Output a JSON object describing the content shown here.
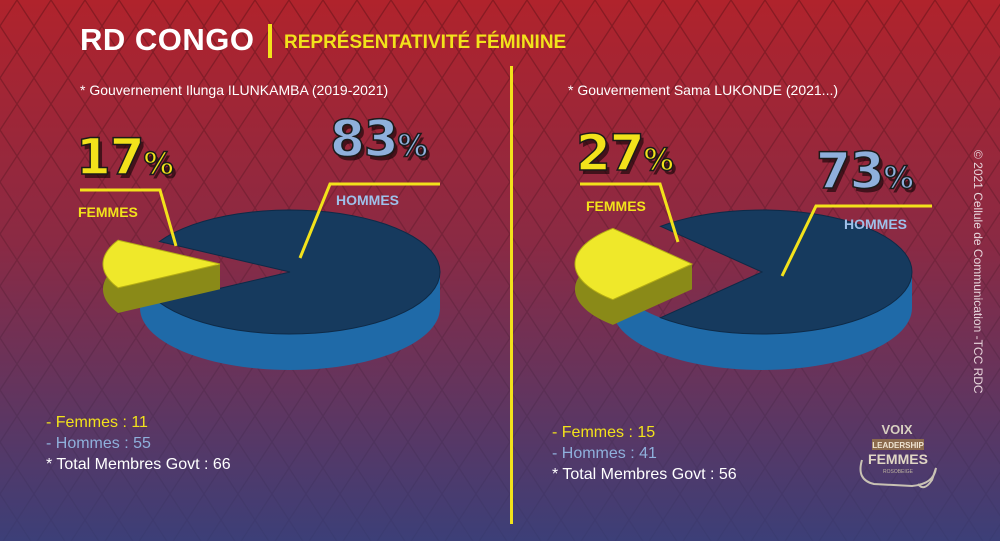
{
  "header": {
    "title": "RD CONGO",
    "subtitle": "REPRÉSENTATIVITÉ FÉMININE"
  },
  "credit": "© 2021 Cellule de Communication -TCC RDC",
  "logo": {
    "line1": "VOIX",
    "line2": "LEADERSHIP",
    "line3": "FEMMES",
    "line4": "ROSOBEIGE"
  },
  "colors": {
    "women": "#f2e21b",
    "men": "#8fb0dc",
    "pie_top": "#163a5e",
    "pie_side": "#1f6aa8",
    "slice_side": "#8a8a18",
    "slice_top": "#efe82a"
  },
  "chart_data": [
    {
      "type": "pie",
      "title": "* Gouvernement Ilunga ILUNKAMBA (2019-2021)",
      "slices": [
        {
          "label": "FEMMES",
          "value": 17,
          "display": "17",
          "unit": "%"
        },
        {
          "label": "HOMMES",
          "value": 83,
          "display": "83",
          "unit": "%"
        }
      ],
      "stats": {
        "femmes": "- Femmes : 11",
        "hommes": "- Hommes :  55",
        "total": "* Total Membres Govt :  66"
      }
    },
    {
      "type": "pie",
      "title": "* Gouvernement Sama LUKONDE (2021...)",
      "slices": [
        {
          "label": "FEMMES",
          "value": 27,
          "display": "27",
          "unit": "%"
        },
        {
          "label": "HOMMES",
          "value": 73,
          "display": "73",
          "unit": "%"
        }
      ],
      "stats": {
        "femmes": "- Femmes : 15",
        "hommes": "- Hommes : 41",
        "total": "* Total Membres Govt : 56"
      }
    }
  ]
}
